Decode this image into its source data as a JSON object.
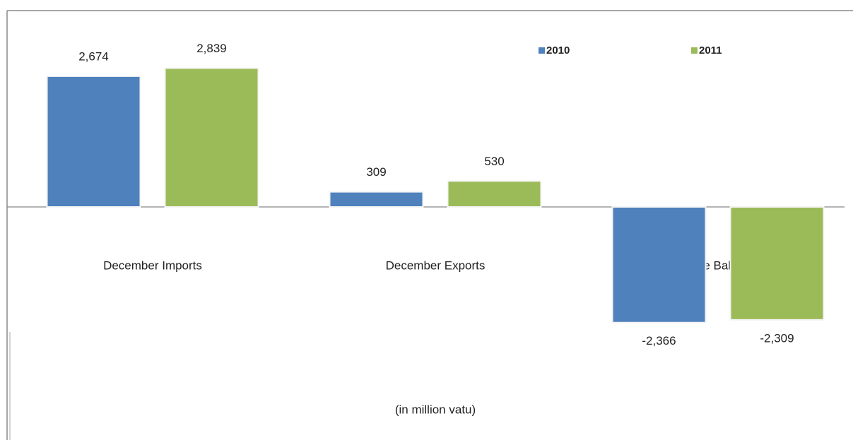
{
  "chart_data": {
    "type": "bar",
    "categories": [
      "December Imports",
      "December Exports",
      "Trade Balance"
    ],
    "series": [
      {
        "name": "2010",
        "color": "#4f81bd",
        "values": [
          2674,
          309,
          -2366
        ],
        "value_labels": [
          "2,674",
          "309",
          "-2,366"
        ]
      },
      {
        "name": "2011",
        "color": "#9bbb59",
        "values": [
          2839,
          530,
          -2309
        ],
        "value_labels": [
          "2,839",
          "530",
          "-2,309"
        ]
      }
    ],
    "x_label": "(in million vatu)",
    "legend": "top-right"
  }
}
